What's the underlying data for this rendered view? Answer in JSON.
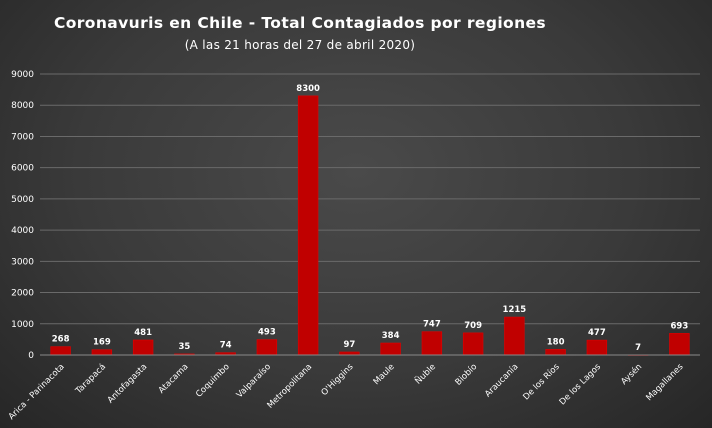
{
  "chart_data": {
    "type": "bar",
    "title": "Coronavuris  en Chile  - Total  Contagiados  por  regiones",
    "subtitle": "(A las 21 horas del 27 de abril 2020)",
    "categories": [
      "Arica - Parinacota",
      "Tarapacá",
      "Antofagasta",
      "Atacama",
      "Coquimbo",
      "Valparaíso",
      "Metropolitana",
      "O'Higgins",
      "Maule",
      "Ñuble",
      "Biobío",
      "Araucanía",
      "De los Ríos",
      "De los Lagos",
      "Aysén",
      "Magallanes"
    ],
    "values": [
      268,
      169,
      481,
      35,
      74,
      493,
      8300,
      97,
      384,
      747,
      709,
      1215,
      180,
      477,
      7,
      693
    ],
    "ylim": [
      0,
      9000
    ],
    "yticks": [
      0,
      1000,
      2000,
      3000,
      4000,
      5000,
      6000,
      7000,
      8000,
      9000
    ],
    "grid": true,
    "legend": "none",
    "xlabel": "",
    "ylabel": "",
    "colors": {
      "bar": "#c00000",
      "bar_edge": "#e00000",
      "grid": "#6a6a6a",
      "text": "#ffffff"
    }
  }
}
